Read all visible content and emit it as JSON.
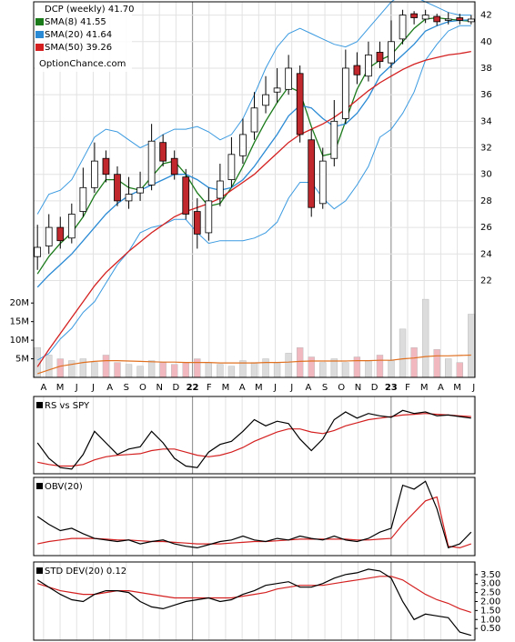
{
  "chart_data": [
    {
      "type": "candlestick",
      "title": "DCP (weekly) 41.70",
      "annotation": "OptionChance.com",
      "x": [
        1,
        4,
        7,
        10,
        13,
        16,
        19,
        22,
        25,
        28,
        31,
        34,
        37,
        40,
        43,
        46,
        49,
        52,
        55,
        58,
        61,
        64,
        67,
        70,
        73,
        76,
        79,
        82,
        85,
        88,
        91,
        94,
        97,
        100,
        103,
        106,
        109,
        112,
        115
      ],
      "open": [
        23.8,
        24.6,
        26,
        25.2,
        27.2,
        29,
        31.2,
        30,
        28,
        28.6,
        29.2,
        32.4,
        31.2,
        29.8,
        27.2,
        25.6,
        28.2,
        29.6,
        31.4,
        33.2,
        35.2,
        36.2,
        36.4,
        37.6,
        32.6,
        27.8,
        31.2,
        34.2,
        38.2,
        37.4,
        39.2,
        38.4,
        40.2,
        42.1,
        41.7,
        41.9,
        41.6,
        41.8,
        41.5
      ],
      "high": [
        26.2,
        27,
        26.8,
        27.8,
        30.5,
        32.4,
        31.8,
        30.6,
        29.8,
        30.2,
        33.8,
        33,
        31.8,
        30.4,
        28.2,
        29,
        30.8,
        32.8,
        34.2,
        36.2,
        37.4,
        38,
        39,
        38.2,
        33.4,
        32,
        35.6,
        39.4,
        39.2,
        40,
        40,
        41.6,
        42.4,
        42.3,
        42.4,
        42.1,
        42.2,
        42.1,
        42
      ],
      "low": [
        22.8,
        24,
        24.4,
        24.8,
        26.8,
        28.6,
        29.4,
        27.6,
        27.4,
        28,
        28.8,
        30.6,
        29.6,
        26.6,
        24.4,
        25,
        27.6,
        29,
        30.8,
        32.6,
        34.6,
        35.4,
        36,
        32.4,
        26.8,
        27.4,
        30.6,
        33.8,
        36.8,
        37,
        38,
        38,
        39.8,
        41.3,
        41.4,
        41.2,
        41.3,
        41.3,
        41.3
      ],
      "close": [
        24.5,
        26,
        25,
        27,
        29,
        31,
        30,
        28,
        28.5,
        29,
        32.5,
        31,
        30,
        27,
        25.5,
        28,
        29.5,
        31.5,
        33,
        35,
        36,
        36.5,
        38,
        33,
        27.5,
        31,
        34,
        38,
        37.5,
        39,
        38.5,
        40,
        42,
        41.8,
        42,
        41.5,
        41.7,
        41.6,
        41.7
      ],
      "up_color": "#ffffff",
      "down_color": "#c0282d",
      "volume": [
        8,
        6,
        5,
        4.5,
        5,
        4,
        6,
        4,
        3.5,
        3,
        4.5,
        4,
        3.5,
        4,
        5,
        4,
        3.5,
        3,
        4.5,
        4,
        5,
        4,
        6.5,
        8,
        5.5,
        4,
        5,
        4,
        5.5,
        4.5,
        6,
        4.5,
        13,
        8,
        21,
        7.5,
        5,
        4,
        17
      ],
      "volume_up_color": "#dcdcdc",
      "volume_down_color": "#f2b8c0",
      "volume_avg": {
        "color": "#e07020",
        "values": [
          1,
          2,
          3,
          3.5,
          4,
          4.3,
          4.5,
          4.5,
          4.4,
          4.3,
          4.2,
          4.1,
          4.1,
          4,
          4,
          4,
          3.9,
          3.9,
          3.9,
          3.9,
          4,
          4,
          4.1,
          4.3,
          4.4,
          4.4,
          4.4,
          4.4,
          4.5,
          4.5,
          4.6,
          4.6,
          5,
          5.2,
          5.6,
          5.8,
          5.8,
          5.9,
          6
        ]
      },
      "volume_ylim": [
        0,
        101
      ],
      "volume_yticks": [
        {
          "value": 5,
          "label": "5M"
        },
        {
          "value": 10,
          "label": "10M"
        },
        {
          "value": 15,
          "label": "15M"
        },
        {
          "value": 20,
          "label": "20M"
        }
      ],
      "series": [
        {
          "name": "SMA(8) 41.55",
          "color": "#1a7a1a",
          "values": [
            22.5,
            23.8,
            24.8,
            25.6,
            26.8,
            28.4,
            29.6,
            29.6,
            29,
            28.8,
            29.8,
            30.8,
            31,
            30,
            28.6,
            27.6,
            27.8,
            29,
            30.6,
            32.4,
            34,
            35.4,
            36.6,
            36.2,
            33.6,
            31.4,
            31.6,
            34,
            36.4,
            38,
            38.6,
            39,
            40,
            41,
            41.7,
            41.8,
            41.7,
            41.6,
            41.55
          ]
        },
        {
          "name": "SMA(20) 41.64",
          "color": "#2a8ad4",
          "values": [
            21.5,
            22.4,
            23.2,
            24,
            25,
            26,
            27,
            27.8,
            28.4,
            28.8,
            29.2,
            29.6,
            30,
            30,
            29.6,
            29,
            28.8,
            29,
            29.6,
            30.6,
            31.8,
            33,
            34.4,
            35.2,
            35,
            34.2,
            33.6,
            33.8,
            34.6,
            35.8,
            37.4,
            38.2,
            39,
            39.8,
            40.8,
            41.2,
            41.5,
            41.6,
            41.64
          ]
        },
        {
          "name": "SMA(50) 39.26",
          "color": "#d42020",
          "values": [
            15.5,
            16.8,
            18,
            19.2,
            20.4,
            21.6,
            22.6,
            23.4,
            24.2,
            24.9,
            25.6,
            26.2,
            26.8,
            27.2,
            27.5,
            27.8,
            28.2,
            28.8,
            29.4,
            30,
            30.8,
            31.6,
            32.4,
            33,
            33.4,
            33.8,
            34.3,
            34.9,
            35.6,
            36.3,
            36.9,
            37.4,
            37.9,
            38.3,
            38.6,
            38.8,
            39,
            39.1,
            39.26
          ]
        }
      ],
      "bands": {
        "color": "#3a9ae0",
        "upper": [
          27,
          28.5,
          28.8,
          29.6,
          31.2,
          32.8,
          33.4,
          33.2,
          32.6,
          32,
          32.4,
          33,
          33.4,
          33.4,
          33.6,
          33.2,
          32.6,
          33,
          34.2,
          36,
          38,
          39.6,
          40.6,
          41,
          40.6,
          40.2,
          39.8,
          39.6,
          40,
          41,
          42,
          43,
          43.6,
          43.4,
          43,
          42.6,
          42.2,
          42,
          42
        ],
        "lower": [
          16,
          16.5,
          17.6,
          18.4,
          19.6,
          20.4,
          21.8,
          23.2,
          24.2,
          25.6,
          26,
          26.2,
          26.6,
          26.6,
          25.6,
          24.8,
          25,
          25,
          25,
          25.2,
          25.6,
          26.4,
          28.2,
          29.4,
          29.4,
          28.2,
          27.4,
          28,
          29.2,
          30.6,
          32.8,
          33.4,
          34.6,
          36.2,
          38.6,
          39.8,
          40.8,
          41.2,
          41.2
        ]
      },
      "xlim": [
        0,
        116
      ],
      "ylim": [
        14.7,
        43.0
      ],
      "yticks": [
        22,
        24,
        26,
        28,
        30,
        32,
        34,
        36,
        38,
        40,
        42
      ],
      "xticks": [
        {
          "value": 2.6,
          "label": "A"
        },
        {
          "value": 6.95,
          "label": "M"
        },
        {
          "value": 11.3,
          "label": "J"
        },
        {
          "value": 15.65,
          "label": "J"
        },
        {
          "value": 20,
          "label": "A"
        },
        {
          "value": 24.35,
          "label": "S"
        },
        {
          "value": 28.7,
          "label": "O"
        },
        {
          "value": 33.05,
          "label": "N"
        },
        {
          "value": 37.4,
          "label": "D"
        },
        {
          "value": 41.75,
          "label": "22"
        },
        {
          "value": 46.1,
          "label": "F"
        },
        {
          "value": 50.45,
          "label": "M"
        },
        {
          "value": 54.8,
          "label": "A"
        },
        {
          "value": 59.15,
          "label": "M"
        },
        {
          "value": 63.5,
          "label": "J"
        },
        {
          "value": 67.85,
          "label": "J"
        },
        {
          "value": 72.2,
          "label": "A"
        },
        {
          "value": 76.55,
          "label": "S"
        },
        {
          "value": 80.9,
          "label": "O"
        },
        {
          "value": 85.25,
          "label": "N"
        },
        {
          "value": 89.6,
          "label": "D"
        },
        {
          "value": 93.95,
          "label": "23"
        },
        {
          "value": 98.3,
          "label": "F"
        },
        {
          "value": 102.65,
          "label": "M"
        },
        {
          "value": 107,
          "label": "A"
        },
        {
          "value": 111.35,
          "label": "M"
        },
        {
          "value": 115.7,
          "label": "J"
        }
      ],
      "grid": true
    },
    {
      "type": "line",
      "title": "RS vs SPY",
      "ylim": [
        0,
        100
      ],
      "series": [
        {
          "color": "#000000",
          "values": [
            40,
            20,
            8,
            6,
            25,
            55,
            40,
            25,
            32,
            35,
            55,
            40,
            20,
            10,
            8,
            28,
            38,
            42,
            55,
            70,
            62,
            68,
            65,
            45,
            30,
            45,
            70,
            80,
            72,
            78,
            75,
            73,
            82,
            78,
            80,
            75,
            76,
            74,
            72
          ]
        },
        {
          "color": "#d42020",
          "values": [
            15,
            12,
            10,
            10,
            12,
            18,
            22,
            24,
            25,
            26,
            30,
            32,
            32,
            28,
            24,
            22,
            24,
            28,
            34,
            42,
            48,
            54,
            58,
            58,
            54,
            52,
            56,
            62,
            66,
            70,
            72,
            74,
            76,
            77,
            78,
            77,
            76,
            75,
            74
          ]
        }
      ]
    },
    {
      "type": "line",
      "title": "OBV(20)",
      "ylim": [
        0,
        100
      ],
      "series": [
        {
          "color": "#000000",
          "values": [
            50,
            40,
            32,
            35,
            28,
            22,
            20,
            18,
            20,
            15,
            18,
            20,
            15,
            12,
            10,
            14,
            18,
            20,
            25,
            20,
            18,
            22,
            20,
            25,
            22,
            20,
            25,
            20,
            18,
            22,
            30,
            35,
            90,
            85,
            95,
            60,
            10,
            15,
            30
          ]
        },
        {
          "color": "#d42020",
          "values": [
            15,
            18,
            20,
            22,
            22,
            22,
            21,
            20,
            20,
            19,
            18,
            18,
            17,
            16,
            15,
            15,
            15,
            16,
            17,
            18,
            18,
            19,
            20,
            21,
            21,
            21,
            21,
            21,
            20,
            20,
            21,
            22,
            40,
            55,
            70,
            75,
            12,
            10,
            15
          ]
        }
      ]
    },
    {
      "type": "line",
      "title": "STD DEV(20) 0.12",
      "ylim": [
        -0.15,
        4.2
      ],
      "yticks": [
        {
          "value": 0.5,
          "label": "0.50"
        },
        {
          "value": 1,
          "label": "1.00"
        },
        {
          "value": 1.5,
          "label": "1.50"
        },
        {
          "value": 2,
          "label": "2.00"
        },
        {
          "value": 2.5,
          "label": "2.50"
        },
        {
          "value": 3,
          "label": "3.00"
        },
        {
          "value": 3.5,
          "label": "3.50"
        }
      ],
      "series": [
        {
          "color": "#000000",
          "values": [
            3.2,
            2.8,
            2.4,
            2.1,
            2.0,
            2.4,
            2.6,
            2.6,
            2.5,
            2.0,
            1.7,
            1.6,
            1.8,
            2.0,
            2.1,
            2.2,
            2.0,
            2.1,
            2.4,
            2.6,
            2.9,
            3.0,
            3.1,
            2.8,
            2.8,
            3.0,
            3.3,
            3.5,
            3.6,
            3.8,
            3.7,
            3.3,
            2.0,
            1.0,
            1.3,
            1.2,
            1.1,
            0.3,
            0.12
          ]
        },
        {
          "color": "#d42020",
          "values": [
            3.0,
            2.8,
            2.6,
            2.5,
            2.4,
            2.4,
            2.5,
            2.6,
            2.6,
            2.5,
            2.4,
            2.3,
            2.2,
            2.2,
            2.2,
            2.2,
            2.2,
            2.2,
            2.3,
            2.4,
            2.5,
            2.7,
            2.8,
            2.9,
            2.9,
            2.9,
            3.0,
            3.1,
            3.2,
            3.3,
            3.4,
            3.4,
            3.2,
            2.8,
            2.4,
            2.1,
            1.9,
            1.6,
            1.4
          ]
        }
      ]
    }
  ]
}
